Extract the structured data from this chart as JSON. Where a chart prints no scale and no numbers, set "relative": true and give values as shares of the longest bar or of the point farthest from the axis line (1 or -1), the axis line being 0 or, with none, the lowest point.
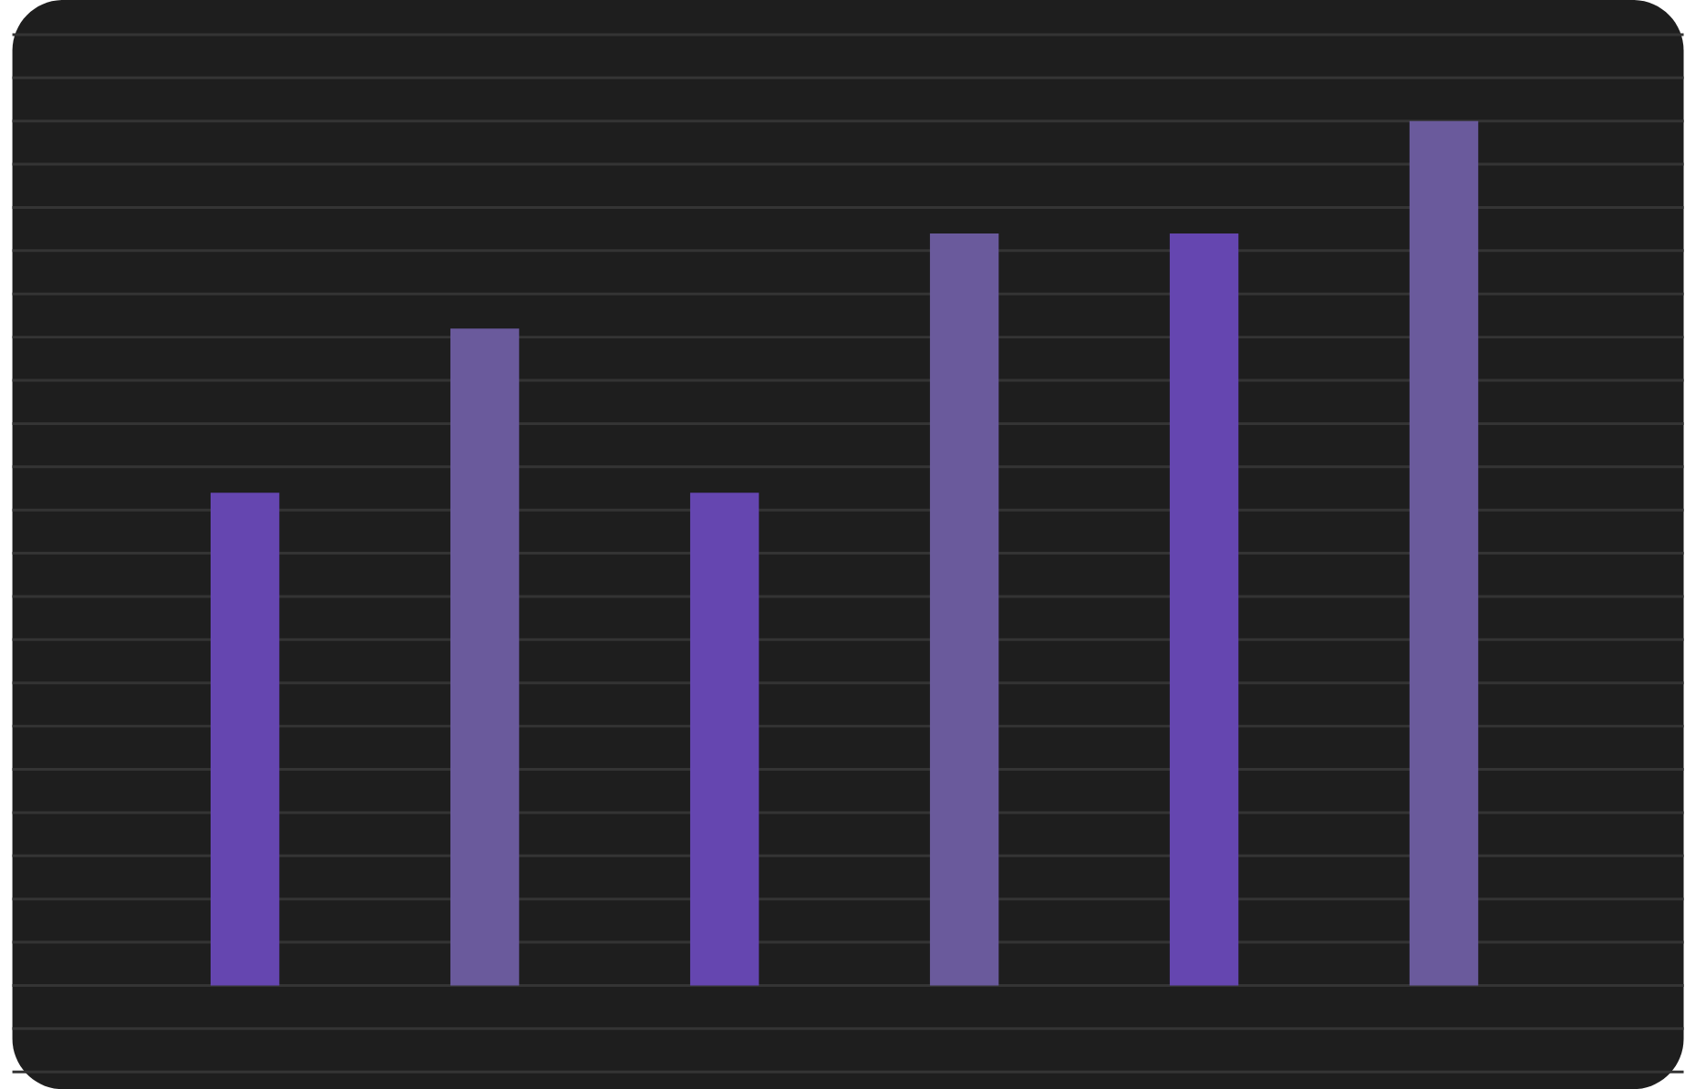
{
  "chart_data": {
    "type": "bar",
    "relative": true,
    "grid": "y",
    "categories": [
      null,
      null,
      null,
      null,
      null,
      null
    ],
    "values": [
      0.57,
      0.76,
      0.57,
      0.87,
      0.87,
      1
    ],
    "colors": [
      "#6546b0",
      "#6a5a9c",
      "#6546b0",
      "#6a5a9c",
      "#6546b0",
      "#6a5a9c"
    ]
  }
}
